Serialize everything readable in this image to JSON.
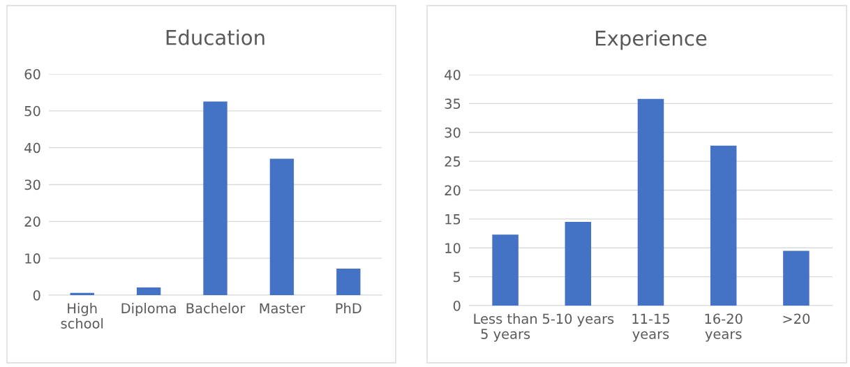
{
  "chart_data": [
    {
      "type": "bar",
      "title": "Education",
      "categories": [
        "High\nschool",
        "Diploma",
        "Bachelor",
        "Master",
        "PhD"
      ],
      "values": [
        0.6,
        2.1,
        52.5,
        37,
        7.2
      ],
      "color": "#4472c4",
      "ylim": [
        0,
        60
      ],
      "yticks": [
        0,
        10,
        20,
        30,
        40,
        50,
        60
      ],
      "grid": "y",
      "legend": false
    },
    {
      "type": "bar",
      "title": "Experience",
      "categories": [
        "Less than\n5 years",
        "5-10 years",
        "11-15\nyears",
        "16-20\nyears",
        ">20"
      ],
      "values": [
        12.3,
        14.5,
        35.8,
        27.7,
        9.5
      ],
      "color": "#4472c4",
      "ylim": [
        0,
        40
      ],
      "yticks": [
        0,
        5,
        10,
        15,
        20,
        25,
        30,
        35,
        40
      ],
      "grid": "y",
      "legend": false
    }
  ]
}
